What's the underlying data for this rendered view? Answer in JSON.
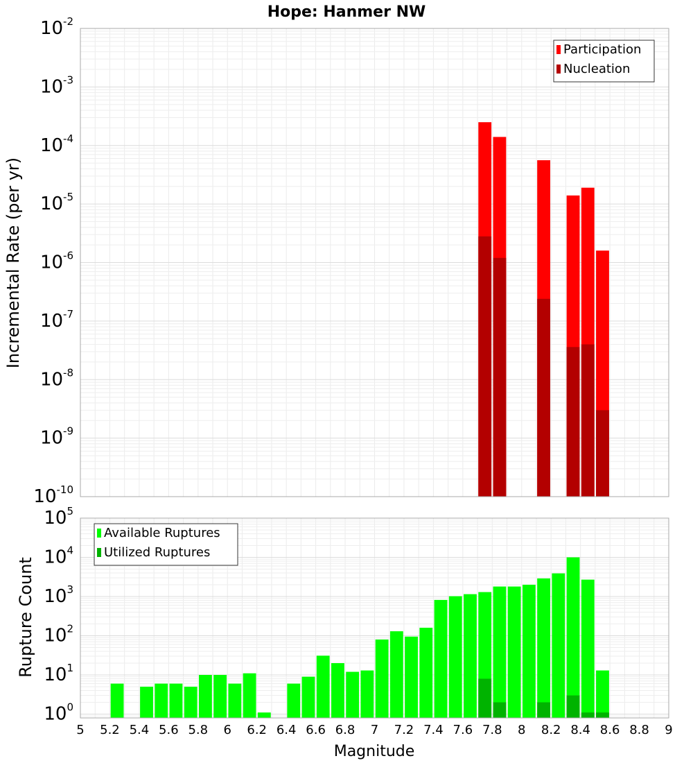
{
  "chart_data": [
    {
      "type": "bar",
      "title": "Hope: Hanmer NW",
      "xlabel": "",
      "ylabel": "Incremental Rate (per yr)",
      "xlim": [
        5,
        9
      ],
      "ylim": [
        1e-10,
        0.01
      ],
      "yscale": "log",
      "grid": true,
      "bin_width": 0.1,
      "legend_position": "top-right",
      "x": [
        7.75,
        7.85,
        8.15,
        8.35,
        8.45,
        8.55
      ],
      "series": [
        {
          "name": "Participation",
          "color": "#ff0000",
          "values": [
            0.00025,
            0.00014,
            5.6e-05,
            1.4e-05,
            1.9e-05,
            1.6e-06
          ]
        },
        {
          "name": "Nucleation",
          "color": "#b30000",
          "values": [
            2.8e-06,
            1.2e-06,
            2.4e-07,
            3.6e-08,
            4e-08,
            3e-09
          ]
        }
      ]
    },
    {
      "type": "bar",
      "title": "",
      "xlabel": "Magnitude",
      "ylabel": "Rupture Count",
      "xlim": [
        5,
        9
      ],
      "ylim": [
        0.8,
        100000
      ],
      "yscale": "log",
      "grid": true,
      "bin_width": 0.1,
      "legend_position": "top-left",
      "x_ticks": [
        "5",
        "5.2",
        "5.4",
        "5.6",
        "5.8",
        "6",
        "6.2",
        "6.4",
        "6.6",
        "6.8",
        "7",
        "7.2",
        "7.4",
        "7.6",
        "7.8",
        "8",
        "8.2",
        "8.4",
        "8.6",
        "8.8",
        "9"
      ],
      "series": [
        {
          "name": "Available Ruptures",
          "color": "#00ff00",
          "x": [
            5.25,
            5.45,
            5.55,
            5.65,
            5.75,
            5.85,
            5.95,
            6.05,
            6.15,
            6.25,
            6.45,
            6.55,
            6.65,
            6.75,
            6.85,
            6.95,
            7.05,
            7.15,
            7.25,
            7.35,
            7.45,
            7.55,
            7.65,
            7.75,
            7.85,
            7.95,
            8.05,
            8.15,
            8.25,
            8.35,
            8.45,
            8.55
          ],
          "values": [
            6,
            5,
            6,
            6,
            5,
            10,
            10,
            6,
            11,
            1.1,
            6,
            9,
            31,
            20,
            12,
            13,
            80,
            130,
            95,
            160,
            820,
            1020,
            1150,
            1300,
            1800,
            1800,
            2000,
            2900,
            3900,
            10000,
            2700,
            13
          ]
        },
        {
          "name": "Utilized Ruptures",
          "color": "#00b300",
          "x": [
            7.75,
            7.85,
            8.15,
            8.35,
            8.45,
            8.55
          ],
          "values": [
            8,
            2,
            2,
            3,
            1.1,
            1.1
          ]
        }
      ]
    }
  ]
}
